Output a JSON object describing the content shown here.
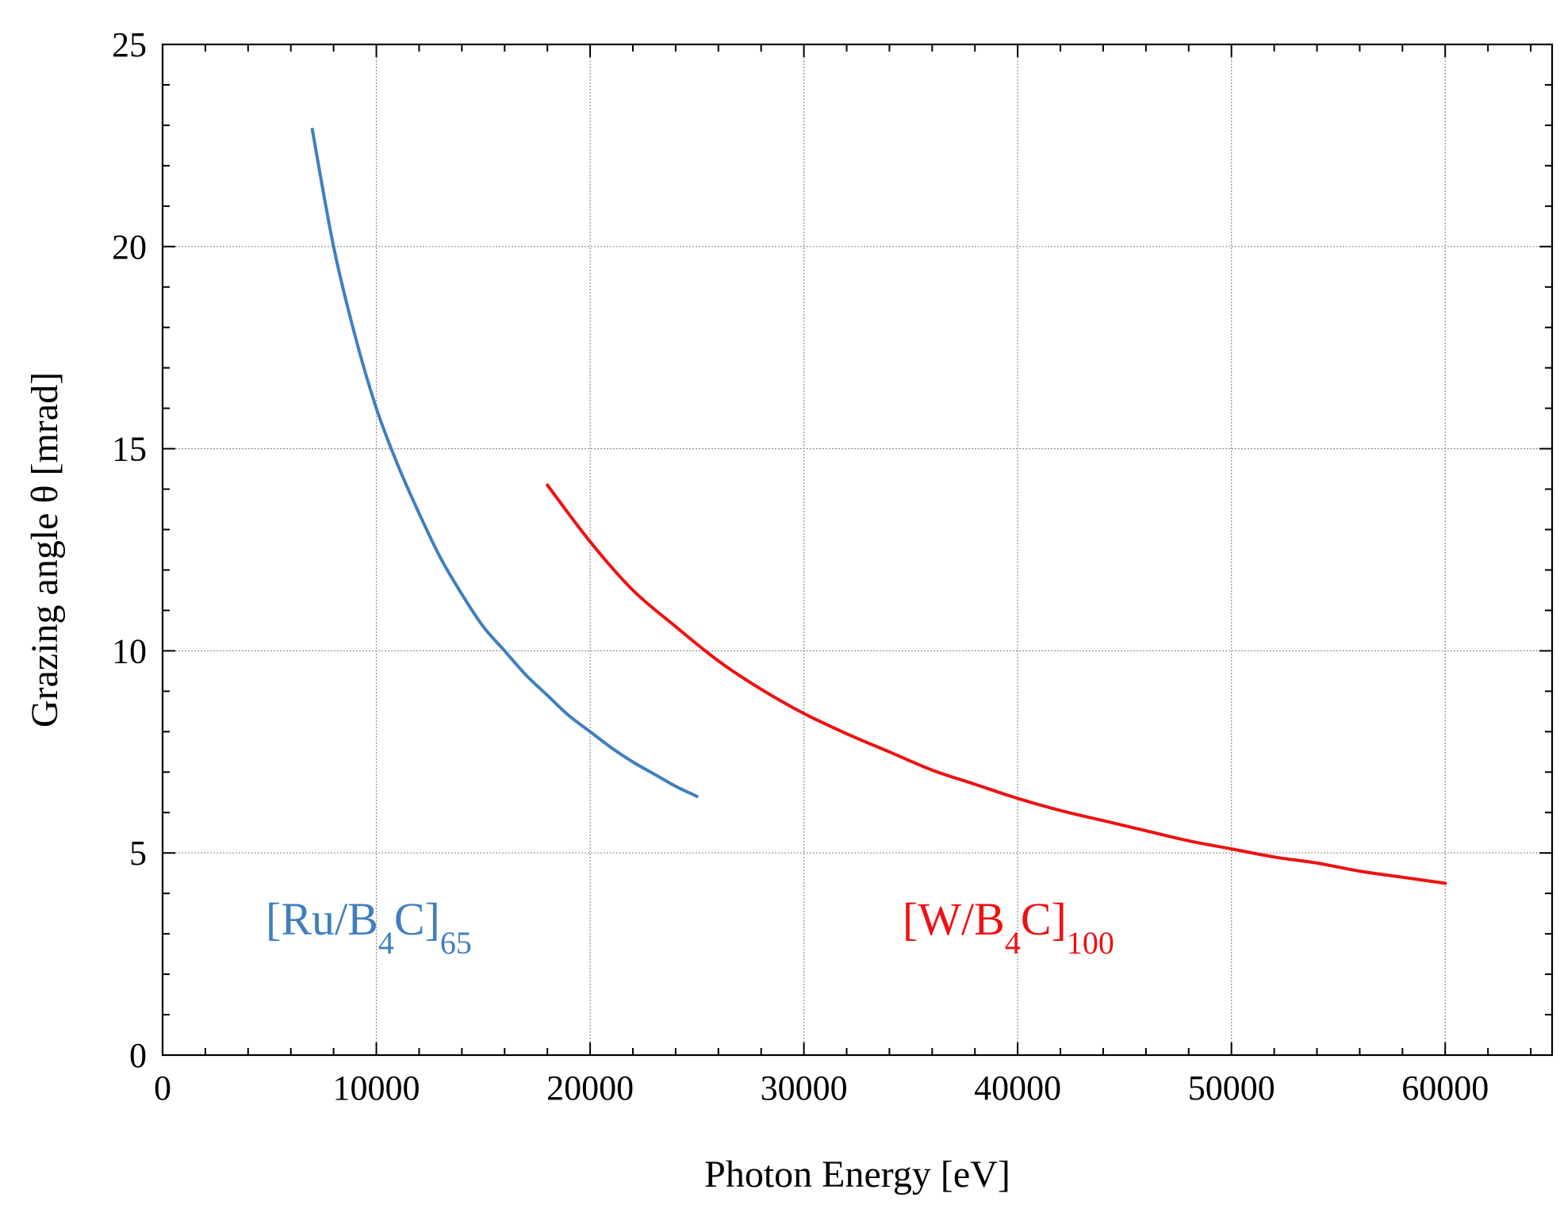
{
  "chart_data": {
    "type": "line",
    "xlabel": "Photon Energy [eV]",
    "ylabel": "Grazing angle θ [mrad]",
    "xlim": [
      0,
      65000
    ],
    "ylim": [
      0,
      25
    ],
    "xticks": [
      0,
      10000,
      20000,
      30000,
      40000,
      50000,
      60000
    ],
    "yticks": [
      0,
      5,
      10,
      15,
      20,
      25
    ],
    "xtick_labels": [
      "0",
      "10000",
      "20000",
      "30000",
      "40000",
      "50000",
      "60000"
    ],
    "ytick_labels": [
      "0",
      "5",
      "10",
      "15",
      "20",
      "25"
    ],
    "x_minor_step": 2000,
    "y_minor_step": 1,
    "grid": true,
    "legend": "none",
    "series": [
      {
        "color": "#3f7fbf",
        "x": [
          7000,
          8000,
          9000,
          10000,
          11000,
          12000,
          13000,
          14000,
          15000,
          16000,
          17000,
          18000,
          19000,
          20000,
          21000,
          22000,
          23000,
          24000,
          25000
        ],
        "y": [
          22.9,
          20.0,
          17.8,
          16.0,
          14.6,
          13.4,
          12.3,
          11.4,
          10.6,
          10.0,
          9.4,
          8.9,
          8.4,
          8.0,
          7.6,
          7.25,
          6.95,
          6.65,
          6.4
        ]
      },
      {
        "color": "#ee1111",
        "x": [
          18000,
          20000,
          22000,
          24000,
          26000,
          28000,
          30000,
          32000,
          34000,
          36000,
          38000,
          40000,
          42000,
          44000,
          46000,
          48000,
          50000,
          52000,
          54000,
          56000,
          58000,
          60000
        ],
        "y": [
          14.1,
          12.7,
          11.5,
          10.6,
          9.75,
          9.05,
          8.45,
          7.95,
          7.5,
          7.05,
          6.7,
          6.35,
          6.05,
          5.8,
          5.55,
          5.3,
          5.1,
          4.9,
          4.75,
          4.55,
          4.4,
          4.25
        ]
      }
    ],
    "annotations": [
      {
        "main": "[Ru/B",
        "sub1": "4",
        "mid": "C]",
        "sub2": "65",
        "color": "#3f7fbf"
      },
      {
        "main": "[W/B",
        "sub1": "4",
        "mid": "C]",
        "sub2": "100",
        "color": "#ee1111"
      }
    ]
  }
}
